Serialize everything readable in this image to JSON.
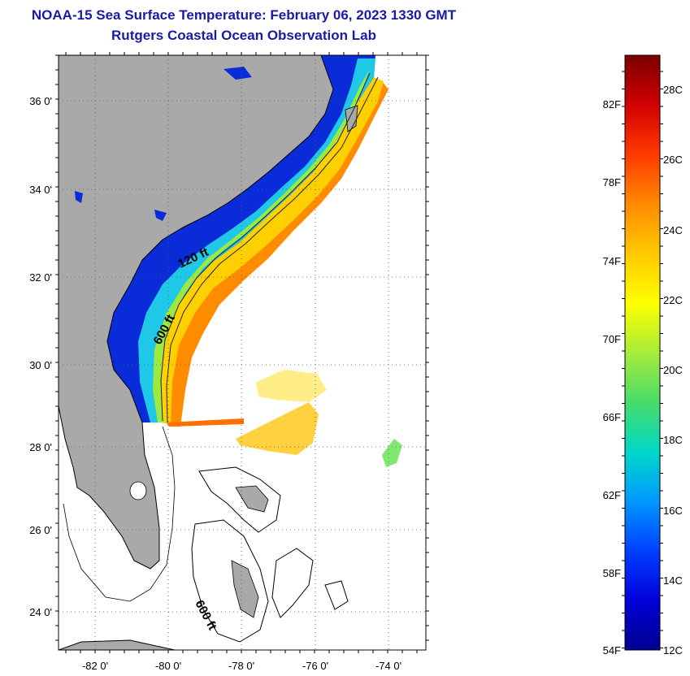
{
  "header": {
    "title": "NOAA-15 Sea Surface Temperature:  February 06, 2023 1330 GMT",
    "subtitle": "Rutgers Coastal Ocean Observation Lab"
  },
  "map": {
    "lat_labels": [
      "36 0'",
      "34 0'",
      "32 0'",
      "30 0'",
      "28 0'",
      "26 0'",
      "24 0'"
    ],
    "lon_labels": [
      "-82 0'",
      "-80 0'",
      "-78 0'",
      "-76 0'",
      "-74 0'"
    ],
    "contour_labels": [
      "120 ft",
      "600 ft",
      "600 ft"
    ]
  },
  "colorbar": {
    "f_labels": [
      "82F",
      "78F",
      "74F",
      "70F",
      "66F",
      "62F",
      "58F",
      "54F"
    ],
    "c_labels": [
      "28C",
      "26C",
      "24C",
      "22C",
      "20C",
      "18C",
      "16C",
      "14C",
      "12C"
    ],
    "stops": [
      "#7a0000",
      "#d20000",
      "#ff3a00",
      "#ff8a00",
      "#ffc800",
      "#ffff00",
      "#a8ec3a",
      "#48dc6a",
      "#00d8c8",
      "#0098ff",
      "#0040ff",
      "#0000d8",
      "#000090"
    ]
  }
}
